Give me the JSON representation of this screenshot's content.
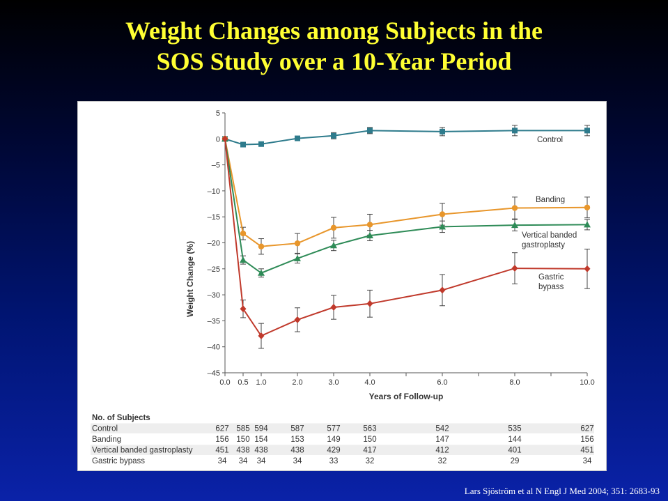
{
  "slide": {
    "title_line1": "Weight Changes among Subjects in the",
    "title_line2": "SOS Study over a 10-Year Period",
    "citation": "Lars Sjöström et al N Engl J Med 2004; 351: 2683-93"
  },
  "colors": {
    "title": "#ffff33",
    "control": "#2e7b8c",
    "banding": "#e8962b",
    "vbg": "#2e8b57",
    "bypass": "#c0392b"
  },
  "chart_data": {
    "type": "line",
    "title": "",
    "xlabel": "Years of Follow-up",
    "ylabel": "Weight Change (%)",
    "ylim": [
      -45,
      5
    ],
    "xlim": [
      0,
      10
    ],
    "x": [
      0.0,
      0.5,
      1.0,
      2.0,
      3.0,
      4.0,
      6.0,
      8.0,
      10.0
    ],
    "x_tick_labels": [
      "0.0",
      "0.5",
      "1.0",
      "2.0",
      "3.0",
      "4.0",
      "6.0",
      "8.0",
      "10.0"
    ],
    "y_ticks": [
      5,
      0,
      -5,
      -10,
      -15,
      -20,
      -25,
      -30,
      -35,
      -40,
      -45
    ],
    "y_tick_labels": [
      "5",
      "0",
      "–5",
      "–10",
      "–15",
      "–20",
      "–25",
      "–30",
      "–35",
      "–40",
      "–45"
    ],
    "grid": false,
    "series": [
      {
        "name": "Control",
        "label_lines": [
          "Control"
        ],
        "marker": "square",
        "color": "#2e7b8c",
        "values": [
          0,
          -1.1,
          -1.0,
          0.1,
          0.6,
          1.6,
          1.4,
          1.6,
          1.6
        ],
        "err": [
          0,
          0.3,
          0.4,
          0.4,
          0.6,
          0.6,
          0.8,
          1.0,
          1.0
        ]
      },
      {
        "name": "Banding",
        "label_lines": [
          "Banding"
        ],
        "marker": "circle",
        "color": "#e8962b",
        "values": [
          0,
          -18.2,
          -20.7,
          -20.1,
          -17.1,
          -16.5,
          -14.5,
          -13.3,
          -13.2
        ],
        "err": [
          0,
          1.2,
          1.5,
          1.9,
          2.0,
          2.0,
          2.1,
          2.1,
          2.0
        ]
      },
      {
        "name": "Vertical banded gastroplasty",
        "label_lines": [
          "Vertical banded",
          "gastroplasty"
        ],
        "marker": "triangle",
        "color": "#2e8b57",
        "values": [
          0,
          -23.3,
          -25.8,
          -23.0,
          -20.5,
          -18.6,
          -16.9,
          -16.6,
          -16.5
        ],
        "err": [
          0,
          0.8,
          0.8,
          0.9,
          1.0,
          1.0,
          1.1,
          1.1,
          1.0
        ]
      },
      {
        "name": "Gastric bypass",
        "label_lines": [
          "Gastric",
          "bypass"
        ],
        "marker": "diamond",
        "color": "#c0392b",
        "values": [
          0,
          -32.7,
          -37.9,
          -34.8,
          -32.4,
          -31.7,
          -29.1,
          -24.9,
          -25.0
        ],
        "err": [
          0,
          1.7,
          2.4,
          2.3,
          2.3,
          2.6,
          3.0,
          3.0,
          3.8
        ]
      }
    ],
    "subjects_table": {
      "header": "No. of Subjects",
      "rows": [
        {
          "label": "Control",
          "counts": [
            "627",
            "585",
            "594",
            "587",
            "577",
            "563",
            "542",
            "535",
            "627"
          ]
        },
        {
          "label": "Banding",
          "counts": [
            "156",
            "150",
            "154",
            "153",
            "149",
            "150",
            "147",
            "144",
            "156"
          ]
        },
        {
          "label": "Vertical banded gastroplasty",
          "counts": [
            "451",
            "438",
            "438",
            "438",
            "429",
            "417",
            "412",
            "401",
            "451"
          ]
        },
        {
          "label": "Gastric bypass",
          "counts": [
            "34",
            "34",
            "34",
            "34",
            "33",
            "32",
            "32",
            "29",
            "34"
          ]
        }
      ]
    }
  }
}
